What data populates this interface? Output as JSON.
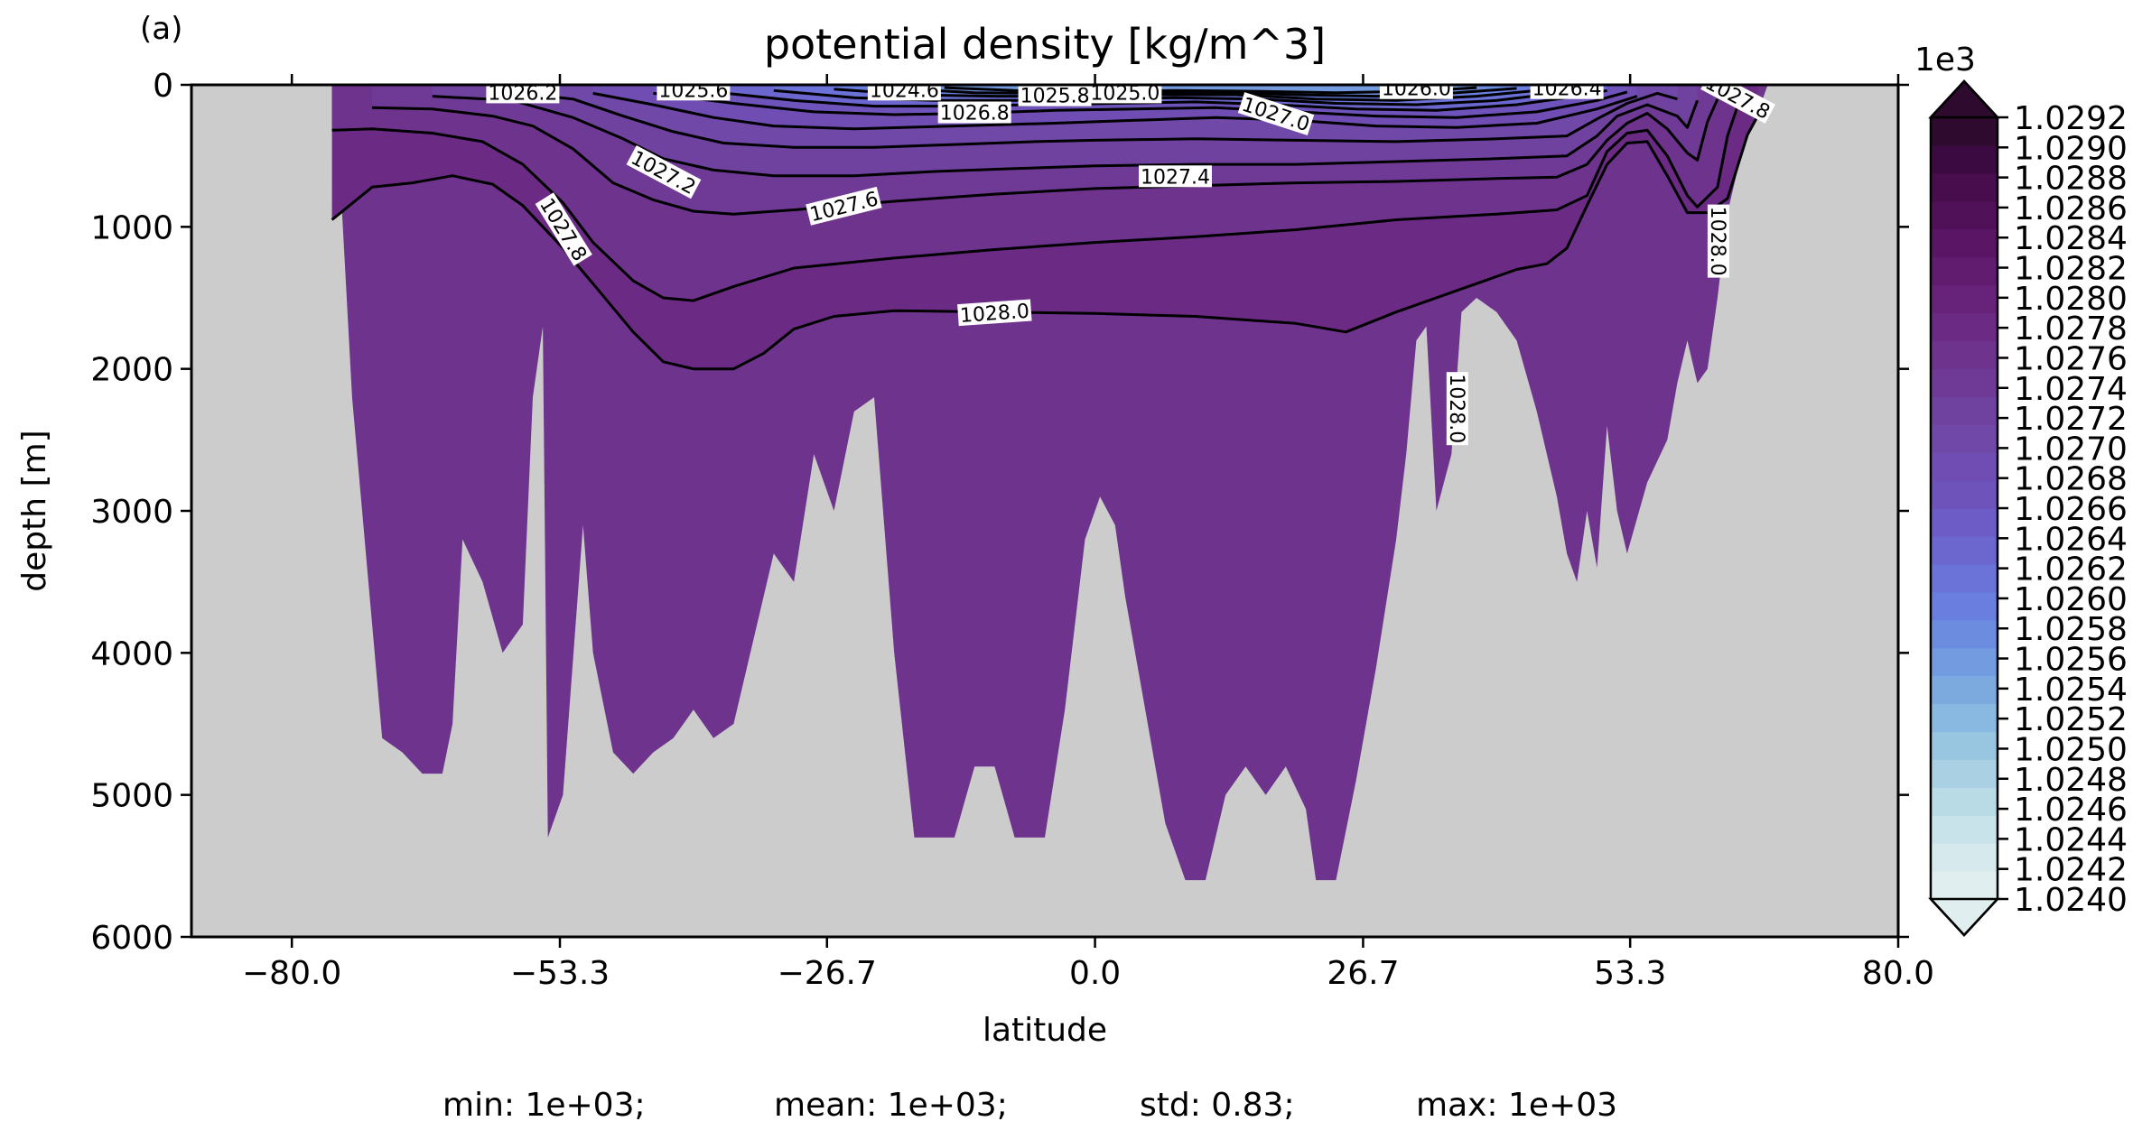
{
  "panel_label": "(a)",
  "stats": {
    "min": "min: 1e+03;",
    "mean": "mean: 1e+03;",
    "std": "std: 0.83;",
    "max": "max: 1e+03"
  },
  "chart_data": {
    "type": "heatmap",
    "title": "potential density [kg/m^3]",
    "xlabel": "latitude",
    "ylabel": "depth [m]",
    "xlim": [
      -90,
      80
    ],
    "ylim": [
      6000,
      0
    ],
    "y_inverted": true,
    "x_ticks": [
      -80.0,
      -53.3,
      -26.7,
      0.0,
      26.7,
      53.3,
      80.0
    ],
    "x_tick_labels": [
      "−80.0",
      "−53.3",
      "−26.7",
      "0.0",
      "26.7",
      "53.3",
      "80.0"
    ],
    "y_ticks": [
      0,
      1000,
      2000,
      3000,
      4000,
      5000,
      6000
    ],
    "y_tick_labels": [
      "0",
      "1000",
      "2000",
      "3000",
      "4000",
      "5000",
      "6000"
    ],
    "grid": false,
    "land_color": "#cccccc",
    "colorbar": {
      "multiplier": "1e3",
      "min": 1.024,
      "max": 1.0292,
      "extend": "both",
      "tick_values": [
        1.024,
        1.0242,
        1.0244,
        1.0246,
        1.0248,
        1.025,
        1.0252,
        1.0254,
        1.0256,
        1.0258,
        1.026,
        1.0262,
        1.0264,
        1.0266,
        1.0268,
        1.027,
        1.0272,
        1.0274,
        1.0276,
        1.0278,
        1.028,
        1.0282,
        1.0284,
        1.0286,
        1.0288,
        1.029,
        1.0292
      ],
      "tick_labels": [
        "1.0240",
        "1.0242",
        "1.0244",
        "1.0246",
        "1.0248",
        "1.0250",
        "1.0252",
        "1.0254",
        "1.0256",
        "1.0258",
        "1.0260",
        "1.0262",
        "1.0264",
        "1.0266",
        "1.0268",
        "1.0270",
        "1.0272",
        "1.0274",
        "1.0276",
        "1.0278",
        "1.0280",
        "1.0282",
        "1.0284",
        "1.0286",
        "1.0288",
        "1.0290",
        "1.0292"
      ],
      "colors": [
        "#e0eef0",
        "#d6eaee",
        "#c8e3ea",
        "#b9dbe6",
        "#a9d1e3",
        "#98c6e1",
        "#89b9e0",
        "#7caadf",
        "#729be0",
        "#6c8ce0",
        "#6a7edf",
        "#6b72d8",
        "#6c66cf",
        "#6d5cc5",
        "#6e53bb",
        "#6f4db2",
        "#7048a8",
        "#70429f",
        "#6f3a96",
        "#6e338d",
        "#6b2b84",
        "#67237a",
        "#611c6f",
        "#5a1664",
        "#511159",
        "#470d4d",
        "#3b0a40",
        "#2e0a2f"
      ]
    },
    "contour_labels": [
      {
        "text": "1026.2",
        "lat": -57,
        "depth": 60
      },
      {
        "text": "1025.6",
        "lat": -40,
        "depth": 40
      },
      {
        "text": "1024.6",
        "lat": -19,
        "depth": 40
      },
      {
        "text": "1026.8",
        "lat": -12,
        "depth": 200
      },
      {
        "text": "1025.8",
        "lat": -4,
        "depth": 80
      },
      {
        "text": "1025.0",
        "lat": 3,
        "depth": 60
      },
      {
        "text": "1027.0",
        "lat": 18,
        "depth": 210
      },
      {
        "text": "1026.0",
        "lat": 32,
        "depth": 30
      },
      {
        "text": "1026.4",
        "lat": 47,
        "depth": 30
      },
      {
        "text": "1027.8",
        "lat": 64,
        "depth": 90
      },
      {
        "text": "1027.2",
        "lat": -43,
        "depth": 620
      },
      {
        "text": "1027.4",
        "lat": 8,
        "depth": 650
      },
      {
        "text": "1027.6",
        "lat": -25,
        "depth": 860
      },
      {
        "text": "1027.8",
        "lat": -53,
        "depth": 1020
      },
      {
        "text": "1028.0",
        "lat": -10,
        "depth": 1610
      },
      {
        "text": "1028.0",
        "lat": 62,
        "depth": 1100
      },
      {
        "text": "1028.0",
        "lat": 36,
        "depth": 2280
      }
    ],
    "contours": [
      {
        "level": 1028.0,
        "points": [
          [
            -76,
            950
          ],
          [
            -72,
            720
          ],
          [
            -68,
            690
          ],
          [
            -64,
            640
          ],
          [
            -60,
            700
          ],
          [
            -57,
            850
          ],
          [
            -53,
            1150
          ],
          [
            -50,
            1400
          ],
          [
            -46,
            1740
          ],
          [
            -43,
            1950
          ],
          [
            -40,
            2000
          ],
          [
            -36,
            2000
          ],
          [
            -33,
            1890
          ],
          [
            -30,
            1720
          ],
          [
            -26,
            1630
          ],
          [
            -20,
            1590
          ],
          [
            -10,
            1600
          ],
          [
            0,
            1610
          ],
          [
            10,
            1630
          ],
          [
            20,
            1680
          ],
          [
            25,
            1740
          ],
          [
            30,
            1600
          ],
          [
            36,
            1450
          ],
          [
            42,
            1300
          ],
          [
            45,
            1260
          ],
          [
            47,
            1150
          ],
          [
            49,
            850
          ],
          [
            51,
            560
          ],
          [
            53,
            410
          ],
          [
            55,
            400
          ],
          [
            57,
            640
          ],
          [
            59,
            900
          ],
          [
            61,
            900
          ],
          [
            63,
            800
          ],
          [
            65,
            350
          ],
          [
            66,
            220
          ]
        ]
      },
      {
        "level": 1027.8,
        "points": [
          [
            -76,
            320
          ],
          [
            -72,
            310
          ],
          [
            -66,
            340
          ],
          [
            -61,
            400
          ],
          [
            -57,
            560
          ],
          [
            -53,
            830
          ],
          [
            -50,
            1110
          ],
          [
            -46,
            1380
          ],
          [
            -43,
            1500
          ],
          [
            -40,
            1520
          ],
          [
            -36,
            1420
          ],
          [
            -30,
            1290
          ],
          [
            -20,
            1220
          ],
          [
            -10,
            1160
          ],
          [
            0,
            1110
          ],
          [
            10,
            1070
          ],
          [
            20,
            1020
          ],
          [
            30,
            950
          ],
          [
            40,
            910
          ],
          [
            46,
            880
          ],
          [
            49,
            780
          ],
          [
            51,
            470
          ],
          [
            53,
            340
          ],
          [
            55,
            320
          ],
          [
            57,
            500
          ],
          [
            59,
            780
          ],
          [
            60,
            860
          ],
          [
            62,
            720
          ],
          [
            63,
            360
          ],
          [
            64,
            150
          ]
        ]
      },
      {
        "level": 1027.6,
        "points": [
          [
            -72,
            160
          ],
          [
            -66,
            170
          ],
          [
            -60,
            220
          ],
          [
            -56,
            290
          ],
          [
            -52,
            450
          ],
          [
            -48,
            690
          ],
          [
            -44,
            810
          ],
          [
            -40,
            890
          ],
          [
            -36,
            910
          ],
          [
            -30,
            880
          ],
          [
            -20,
            820
          ],
          [
            -10,
            770
          ],
          [
            0,
            730
          ],
          [
            10,
            710
          ],
          [
            20,
            690
          ],
          [
            30,
            680
          ],
          [
            40,
            660
          ],
          [
            46,
            650
          ],
          [
            49,
            560
          ],
          [
            51,
            390
          ],
          [
            53,
            270
          ],
          [
            55,
            200
          ],
          [
            57,
            310
          ],
          [
            59,
            480
          ],
          [
            60,
            530
          ],
          [
            61,
            260
          ],
          [
            62,
            100
          ]
        ]
      },
      {
        "level": 1027.4,
        "points": [
          [
            -66,
            80
          ],
          [
            -58,
            110
          ],
          [
            -52,
            230
          ],
          [
            -47,
            380
          ],
          [
            -43,
            520
          ],
          [
            -38,
            600
          ],
          [
            -32,
            640
          ],
          [
            -24,
            640
          ],
          [
            -16,
            610
          ],
          [
            -8,
            590
          ],
          [
            0,
            570
          ],
          [
            10,
            560
          ],
          [
            20,
            560
          ],
          [
            30,
            540
          ],
          [
            40,
            520
          ],
          [
            47,
            500
          ],
          [
            50,
            360
          ],
          [
            52,
            220
          ],
          [
            55,
            140
          ],
          [
            58,
            220
          ],
          [
            59,
            300
          ],
          [
            60,
            110
          ]
        ]
      },
      {
        "level": 1027.2,
        "points": [
          [
            -60,
            40
          ],
          [
            -52,
            100
          ],
          [
            -47,
            220
          ],
          [
            -42,
            330
          ],
          [
            -37,
            410
          ],
          [
            -30,
            440
          ],
          [
            -22,
            440
          ],
          [
            -14,
            420
          ],
          [
            -6,
            400
          ],
          [
            0,
            390
          ],
          [
            10,
            380
          ],
          [
            20,
            390
          ],
          [
            30,
            400
          ],
          [
            40,
            380
          ],
          [
            47,
            360
          ],
          [
            50,
            240
          ],
          [
            53,
            130
          ],
          [
            56,
            60
          ],
          [
            58,
            100
          ]
        ]
      },
      {
        "level": 1027.0,
        "points": [
          [
            -50,
            60
          ],
          [
            -44,
            140
          ],
          [
            -38,
            230
          ],
          [
            -32,
            290
          ],
          [
            -24,
            310
          ],
          [
            -14,
            290
          ],
          [
            -4,
            270
          ],
          [
            4,
            250
          ],
          [
            12,
            230
          ],
          [
            20,
            250
          ],
          [
            28,
            290
          ],
          [
            36,
            300
          ],
          [
            44,
            270
          ],
          [
            50,
            170
          ],
          [
            54,
            80
          ]
        ]
      },
      {
        "level": 1026.8,
        "points": [
          [
            -44,
            60
          ],
          [
            -36,
            130
          ],
          [
            -28,
            190
          ],
          [
            -20,
            210
          ],
          [
            -12,
            200
          ],
          [
            -4,
            180
          ],
          [
            4,
            170
          ],
          [
            12,
            160
          ],
          [
            20,
            190
          ],
          [
            28,
            220
          ],
          [
            36,
            230
          ],
          [
            44,
            190
          ],
          [
            50,
            110
          ],
          [
            53,
            50
          ]
        ]
      },
      {
        "level": 1026.6,
        "points": [
          [
            -38,
            50
          ],
          [
            -30,
            110
          ],
          [
            -22,
            150
          ],
          [
            -14,
            150
          ],
          [
            -6,
            140
          ],
          [
            2,
            130
          ],
          [
            10,
            120
          ],
          [
            18,
            140
          ],
          [
            26,
            170
          ],
          [
            34,
            180
          ],
          [
            42,
            140
          ],
          [
            48,
            80
          ],
          [
            51,
            40
          ]
        ]
      },
      {
        "level": 1026.4,
        "points": [
          [
            -32,
            40
          ],
          [
            -24,
            90
          ],
          [
            -16,
            110
          ],
          [
            -8,
            110
          ],
          [
            0,
            100
          ],
          [
            8,
            90
          ],
          [
            16,
            100
          ],
          [
            24,
            130
          ],
          [
            32,
            140
          ],
          [
            40,
            110
          ],
          [
            46,
            60
          ]
        ]
      },
      {
        "level": 1026.2,
        "points": [
          [
            -26,
            30
          ],
          [
            -18,
            70
          ],
          [
            -10,
            80
          ],
          [
            -2,
            80
          ],
          [
            6,
            70
          ],
          [
            14,
            70
          ],
          [
            22,
            100
          ],
          [
            30,
            110
          ],
          [
            38,
            80
          ],
          [
            44,
            40
          ]
        ]
      },
      {
        "level": 1026.0,
        "points": [
          [
            -20,
            25
          ],
          [
            -12,
            55
          ],
          [
            -4,
            60
          ],
          [
            4,
            55
          ],
          [
            12,
            50
          ],
          [
            20,
            70
          ],
          [
            28,
            80
          ],
          [
            36,
            55
          ],
          [
            42,
            25
          ]
        ]
      },
      {
        "level": 1025.8,
        "points": [
          [
            -15,
            20
          ],
          [
            -8,
            40
          ],
          [
            0,
            45
          ],
          [
            8,
            40
          ],
          [
            16,
            45
          ],
          [
            24,
            55
          ],
          [
            32,
            45
          ],
          [
            38,
            20
          ]
        ]
      }
    ]
  }
}
